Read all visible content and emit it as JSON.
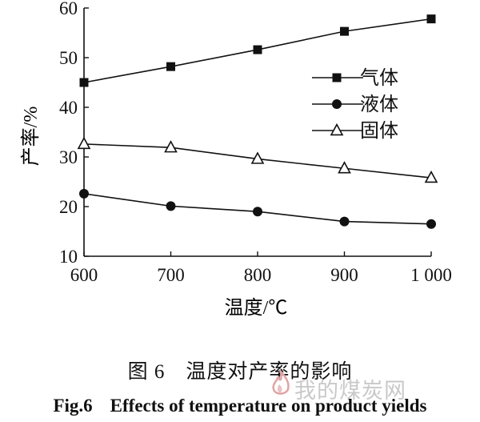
{
  "chart_data": {
    "type": "line",
    "title": "",
    "xlabel": "温度/℃",
    "ylabel": "产率/%",
    "x": [
      600,
      700,
      800,
      900,
      1000
    ],
    "x_tick_labels": [
      "600",
      "700",
      "800",
      "900",
      "1 000"
    ],
    "y_ticks": [
      10,
      20,
      30,
      40,
      50,
      60
    ],
    "xlim": [
      600,
      1000
    ],
    "ylim": [
      10,
      60
    ],
    "grid": false,
    "legend_position": "top-right",
    "series": [
      {
        "name": "气体",
        "marker": "filled-square",
        "values": [
          45.0,
          48.2,
          51.6,
          55.3,
          57.8
        ]
      },
      {
        "name": "液体",
        "marker": "filled-circle",
        "values": [
          22.6,
          20.1,
          19.0,
          17.0,
          16.5
        ]
      },
      {
        "name": "固体",
        "marker": "open-triangle",
        "values": [
          32.6,
          31.9,
          29.6,
          27.7,
          25.8
        ]
      }
    ]
  },
  "caption": {
    "cn": "图 6　温度对产率的影响",
    "en_label": "Fig.6",
    "en_text": "Effects of temperature on product yields"
  },
  "watermark": {
    "text": "我的煤炭网",
    "icon": "flame-logo-icon"
  },
  "colors": {
    "ink": "#111111",
    "watermark": "#c9c9c9"
  }
}
